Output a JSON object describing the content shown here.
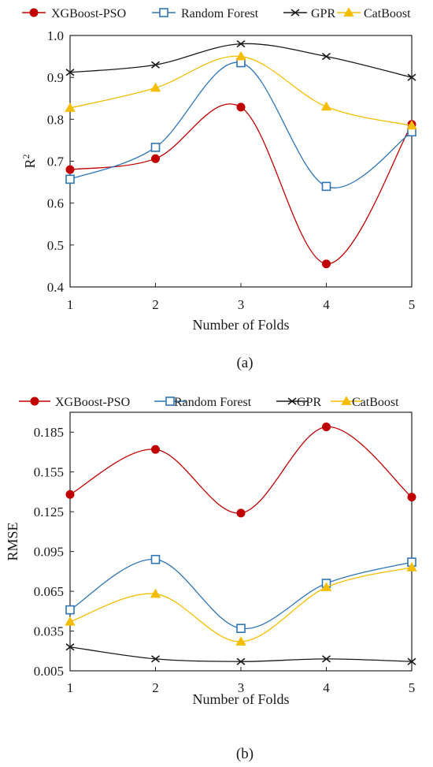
{
  "chart_data": [
    {
      "type": "line",
      "caption": "(a)",
      "xlabel": "Number of Folds",
      "ylabel": "R",
      "ylabel_sup": "2",
      "x": [
        1,
        2,
        3,
        4,
        5
      ],
      "ylim": [
        0.4,
        1.0
      ],
      "yticks": [
        0.4,
        0.5,
        0.6,
        0.7,
        0.8,
        0.9,
        1.0
      ],
      "ytick_labels": [
        "0.4",
        "0.5",
        "0.6",
        "0.7",
        "0.8",
        "0.9",
        "1.0"
      ],
      "legend_position": "top",
      "series": [
        {
          "name": "XGBoost-PSO",
          "marker": "circle",
          "color": "#c00000",
          "values": [
            0.68,
            0.706,
            0.829,
            0.455,
            0.788
          ]
        },
        {
          "name": "Random Forest",
          "marker": "square",
          "color": "#2e75b6",
          "values": [
            0.657,
            0.733,
            0.935,
            0.64,
            0.77
          ]
        },
        {
          "name": "GPR",
          "marker": "x",
          "color": "#1a1a1a",
          "values": [
            0.912,
            0.93,
            0.98,
            0.95,
            0.9
          ]
        },
        {
          "name": "CatBoost",
          "marker": "triangle",
          "color": "#f5bd00",
          "values": [
            0.827,
            0.875,
            0.95,
            0.83,
            0.785
          ]
        }
      ]
    },
    {
      "type": "line",
      "caption": "(b)",
      "xlabel": "Number of Folds",
      "ylabel": "RMSE",
      "x": [
        1,
        2,
        3,
        4,
        5
      ],
      "ylim": [
        0.005,
        0.2
      ],
      "yticks": [
        0.005,
        0.035,
        0.065,
        0.095,
        0.125,
        0.155,
        0.185
      ],
      "ytick_labels": [
        "0.005",
        "0.035",
        "0.065",
        "0.095",
        "0.125",
        "0.155",
        "0.185"
      ],
      "legend_position": "top",
      "series": [
        {
          "name": "XGBoost-PSO",
          "marker": "circle",
          "color": "#c00000",
          "values": [
            0.138,
            0.172,
            0.124,
            0.189,
            0.136
          ]
        },
        {
          "name": "Random Forest",
          "marker": "square",
          "color": "#2e75b6",
          "values": [
            0.051,
            0.089,
            0.037,
            0.071,
            0.087
          ]
        },
        {
          "name": "GPR",
          "marker": "x",
          "color": "#1a1a1a",
          "values": [
            0.023,
            0.014,
            0.012,
            0.014,
            0.012
          ]
        },
        {
          "name": "CatBoost",
          "marker": "triangle",
          "color": "#f5bd00",
          "values": [
            0.042,
            0.063,
            0.027,
            0.068,
            0.083
          ]
        }
      ]
    }
  ]
}
